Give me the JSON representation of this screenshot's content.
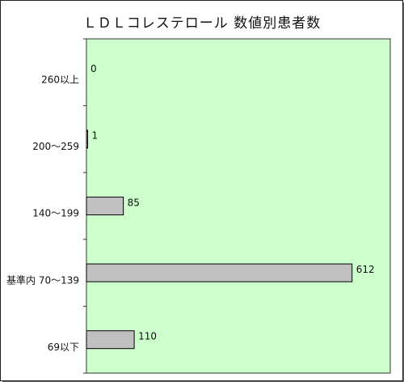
{
  "chart_data": {
    "type": "bar",
    "orientation": "horizontal",
    "title": "ＬＤＬコレステロール 数値別患者数",
    "categories": [
      "260以上",
      "200～259",
      "140～199",
      "基準内 70～139",
      "69以下"
    ],
    "values": [
      0,
      1,
      85,
      612,
      110
    ],
    "xlim": [
      0,
      700
    ],
    "grid": false,
    "legend": "none",
    "colors": {
      "plot_background": "#ccffcc",
      "bar_fill": "#c0c0c0",
      "bar_stroke": "#000000"
    }
  }
}
